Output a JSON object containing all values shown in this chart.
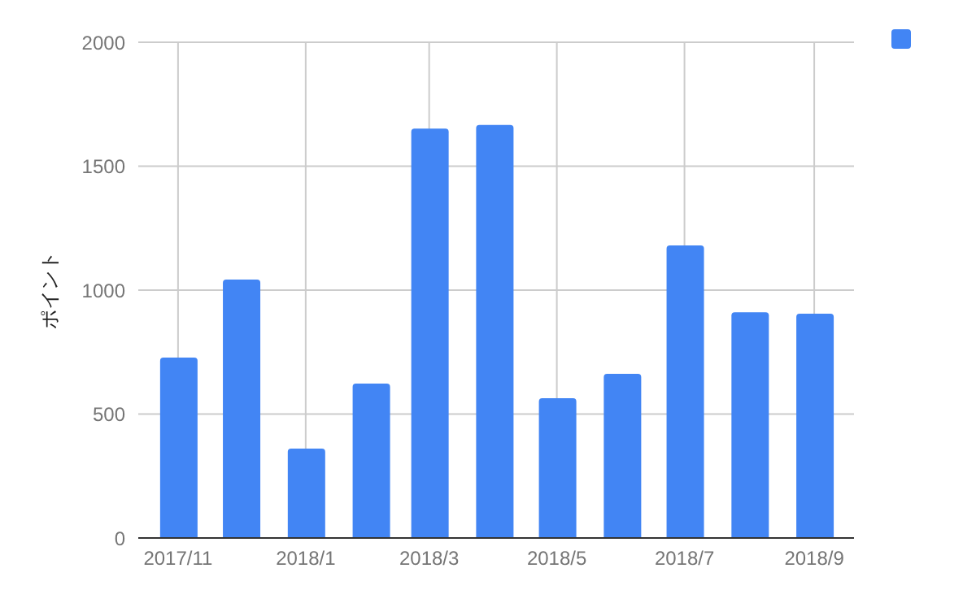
{
  "chart_data": {
    "type": "bar",
    "ylabel": "ポイント",
    "x": [
      "2017-11",
      "2017-12",
      "2018-01",
      "2018-02",
      "2018-03",
      "2018-04",
      "2018-05",
      "2018-06",
      "2018-07",
      "2018-08",
      "2018-09"
    ],
    "series": [
      {
        "color": "#4285f4",
        "values": [
          728,
          1043,
          361,
          623,
          1652,
          1666,
          564,
          662,
          1180,
          911,
          905
        ]
      }
    ],
    "xlim": [
      "2017-10-13",
      "2018-09-20"
    ],
    "xticks": [
      {
        "value": "2017-11",
        "label": "2017/11"
      },
      {
        "value": "2018-01",
        "label": "2018/1"
      },
      {
        "value": "2018-03",
        "label": "2018/3"
      },
      {
        "value": "2018-05",
        "label": "2018/5"
      },
      {
        "value": "2018-07",
        "label": "2018/7"
      },
      {
        "value": "2018-09",
        "label": "2018/9"
      }
    ],
    "ylim": [
      0,
      2000
    ],
    "yticks": [
      0,
      500,
      1000,
      1500,
      2000
    ],
    "grid": true
  }
}
